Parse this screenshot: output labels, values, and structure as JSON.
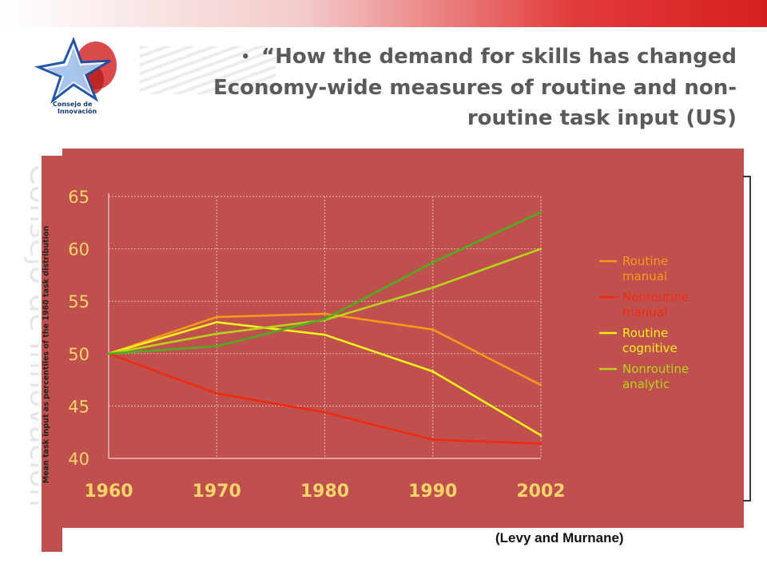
{
  "logo": {
    "text_line1": "Consejo de",
    "text_line2": "Innovación",
    "colors": {
      "primary": "#1a4fa3",
      "secondary": "#d42a2a"
    }
  },
  "watermark": {
    "text": "Consejo de Innovación"
  },
  "slide": {
    "bullet": "•",
    "title_line1": "“How the demand for skills has changed",
    "title_line2": "Economy-wide measures of routine and non-",
    "title_line3": "routine task input (US)"
  },
  "source": "(Levy and Murnane)",
  "chart_data": {
    "type": "line",
    "x": [
      "1960",
      "1970",
      "1980",
      "1990",
      "2002"
    ],
    "ylabel": "Mean task input as percentiles of the 1960 task distribution",
    "ylim": [
      40,
      65
    ],
    "yticks": [
      40,
      45,
      50,
      55,
      60,
      65
    ],
    "grid": true,
    "legend_position": "right",
    "background_color": "#c0504d",
    "series": [
      {
        "name_line1": "Routine",
        "name_line2": "manual",
        "color": "#f59a1a",
        "values": [
          50,
          53.5,
          53.8,
          52.3,
          47.0
        ]
      },
      {
        "name_line1": "Nonroutine",
        "name_line2": "manual",
        "color": "#ee2a12",
        "values": [
          50,
          46.2,
          44.4,
          41.8,
          41.4
        ]
      },
      {
        "name_line1": "Routine",
        "name_line2": "cognitive",
        "color": "#f4f01e",
        "values": [
          50,
          53.0,
          51.8,
          48.3,
          42.2
        ]
      },
      {
        "name_line1": "Nonroutine",
        "name_line2": "analytic",
        "color": "#b8d21c",
        "values": [
          50,
          51.9,
          53.2,
          56.3,
          60.0
        ]
      },
      {
        "name_line1": "",
        "name_line2": "",
        "color": "#4cae1e",
        "values": [
          50,
          50.7,
          53.3,
          58.7,
          63.5
        ]
      }
    ]
  }
}
